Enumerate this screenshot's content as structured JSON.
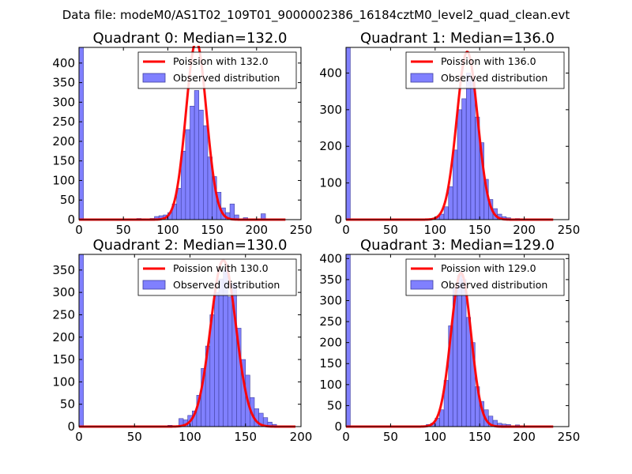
{
  "figure": {
    "suptitle": "Data file: modeM0/AS1T02_109T01_9000002386_16184cztM0_level2_quad_clean.evt"
  },
  "colors": {
    "fit_line": "#ff0000",
    "hist_fill": "#8080ff",
    "hist_edge": "#4040a0",
    "axes": "#000000",
    "legend_edge": "#000000"
  },
  "chart_data": [
    {
      "type": "bar",
      "title": "Quadrant 0: Median=132.0",
      "xlim": [
        0,
        250
      ],
      "ylim": [
        0,
        440
      ],
      "xticks": [
        0,
        50,
        100,
        150,
        200,
        250
      ],
      "yticks": [
        0,
        50,
        100,
        150,
        200,
        250,
        300,
        350,
        400
      ],
      "legend": [
        "Poission with 132.0",
        "Observed distribution"
      ],
      "legend_loc": "upper-right",
      "median": 132.0,
      "fit_peak": 455,
      "fit_sigma": 11.5,
      "bin_width": 5,
      "bins": [
        {
          "x": 0,
          "count": 440
        },
        {
          "x": 55,
          "count": 2
        },
        {
          "x": 65,
          "count": 3
        },
        {
          "x": 70,
          "count": 2
        },
        {
          "x": 80,
          "count": 3
        },
        {
          "x": 85,
          "count": 8
        },
        {
          "x": 90,
          "count": 10
        },
        {
          "x": 95,
          "count": 12
        },
        {
          "x": 100,
          "count": 18
        },
        {
          "x": 105,
          "count": 40
        },
        {
          "x": 110,
          "count": 80
        },
        {
          "x": 115,
          "count": 175
        },
        {
          "x": 120,
          "count": 230
        },
        {
          "x": 125,
          "count": 290
        },
        {
          "x": 130,
          "count": 330
        },
        {
          "x": 135,
          "count": 280
        },
        {
          "x": 140,
          "count": 240
        },
        {
          "x": 145,
          "count": 160
        },
        {
          "x": 150,
          "count": 110
        },
        {
          "x": 155,
          "count": 70
        },
        {
          "x": 160,
          "count": 30
        },
        {
          "x": 165,
          "count": 18
        },
        {
          "x": 170,
          "count": 40
        },
        {
          "x": 175,
          "count": 12
        },
        {
          "x": 185,
          "count": 5
        },
        {
          "x": 205,
          "count": 15
        }
      ]
    },
    {
      "type": "bar",
      "title": "Quadrant 1: Median=136.0",
      "xlim": [
        0,
        250
      ],
      "ylim": [
        0,
        470
      ],
      "xticks": [
        0,
        50,
        100,
        150,
        200,
        250
      ],
      "yticks": [
        0,
        100,
        200,
        300,
        400
      ],
      "legend": [
        "Poission with 136.0",
        "Observed distribution"
      ],
      "legend_loc": "upper-right",
      "median": 136.0,
      "fit_peak": 458,
      "fit_sigma": 11.7,
      "bin_width": 4.8,
      "bins": [
        {
          "x": 0,
          "count": 470
        },
        {
          "x": 95,
          "count": 3
        },
        {
          "x": 100,
          "count": 8
        },
        {
          "x": 105,
          "count": 15
        },
        {
          "x": 110,
          "count": 35
        },
        {
          "x": 115,
          "count": 90
        },
        {
          "x": 120,
          "count": 190
        },
        {
          "x": 125,
          "count": 300
        },
        {
          "x": 130,
          "count": 330
        },
        {
          "x": 135,
          "count": 400
        },
        {
          "x": 140,
          "count": 380
        },
        {
          "x": 145,
          "count": 280
        },
        {
          "x": 150,
          "count": 210
        },
        {
          "x": 155,
          "count": 110
        },
        {
          "x": 160,
          "count": 55
        },
        {
          "x": 165,
          "count": 30
        },
        {
          "x": 170,
          "count": 15
        },
        {
          "x": 175,
          "count": 8
        },
        {
          "x": 180,
          "count": 5
        },
        {
          "x": 190,
          "count": 3
        }
      ]
    },
    {
      "type": "bar",
      "title": "Quadrant 2: Median=130.0",
      "xlim": [
        0,
        200
      ],
      "ylim": [
        0,
        385
      ],
      "xticks": [
        0,
        50,
        100,
        150,
        200
      ],
      "yticks": [
        0,
        50,
        100,
        150,
        200,
        250,
        300,
        350
      ],
      "legend": [
        "Poission with 130.0",
        "Observed distribution"
      ],
      "legend_loc": "upper-right",
      "median": 130.0,
      "fit_peak": 372,
      "fit_sigma": 11.4,
      "bin_width": 4,
      "bins": [
        {
          "x": 0,
          "count": 385
        },
        {
          "x": 80,
          "count": 3
        },
        {
          "x": 90,
          "count": 18
        },
        {
          "x": 94,
          "count": 15
        },
        {
          "x": 98,
          "count": 25
        },
        {
          "x": 102,
          "count": 35
        },
        {
          "x": 106,
          "count": 70
        },
        {
          "x": 110,
          "count": 130
        },
        {
          "x": 114,
          "count": 180
        },
        {
          "x": 118,
          "count": 250
        },
        {
          "x": 122,
          "count": 300
        },
        {
          "x": 126,
          "count": 330
        },
        {
          "x": 130,
          "count": 350
        },
        {
          "x": 134,
          "count": 290
        },
        {
          "x": 138,
          "count": 320
        },
        {
          "x": 142,
          "count": 220
        },
        {
          "x": 146,
          "count": 150
        },
        {
          "x": 150,
          "count": 115
        },
        {
          "x": 154,
          "count": 65
        },
        {
          "x": 158,
          "count": 40
        },
        {
          "x": 162,
          "count": 30
        },
        {
          "x": 166,
          "count": 20
        },
        {
          "x": 170,
          "count": 10
        },
        {
          "x": 174,
          "count": 5
        }
      ]
    },
    {
      "type": "bar",
      "title": "Quadrant 3: Median=129.0",
      "xlim": [
        0,
        250
      ],
      "ylim": [
        0,
        410
      ],
      "xticks": [
        0,
        50,
        100,
        150,
        200,
        250
      ],
      "yticks": [
        0,
        50,
        100,
        150,
        200,
        250,
        300,
        350,
        400
      ],
      "legend": [
        "Poission with 129.0",
        "Observed distribution"
      ],
      "legend_loc": "upper-right",
      "median": 129.0,
      "fit_peak": 366,
      "fit_sigma": 11.3,
      "bin_width": 4.8,
      "bins": [
        {
          "x": 0,
          "count": 410
        },
        {
          "x": 90,
          "count": 5
        },
        {
          "x": 95,
          "count": 8
        },
        {
          "x": 100,
          "count": 20
        },
        {
          "x": 105,
          "count": 40
        },
        {
          "x": 110,
          "count": 110
        },
        {
          "x": 115,
          "count": 240
        },
        {
          "x": 120,
          "count": 330
        },
        {
          "x": 125,
          "count": 360
        },
        {
          "x": 130,
          "count": 350
        },
        {
          "x": 135,
          "count": 260
        },
        {
          "x": 140,
          "count": 200
        },
        {
          "x": 145,
          "count": 95
        },
        {
          "x": 150,
          "count": 60
        },
        {
          "x": 155,
          "count": 40
        },
        {
          "x": 160,
          "count": 25
        },
        {
          "x": 165,
          "count": 15
        },
        {
          "x": 170,
          "count": 8
        },
        {
          "x": 175,
          "count": 6
        },
        {
          "x": 180,
          "count": 5
        },
        {
          "x": 190,
          "count": 4
        }
      ]
    }
  ]
}
